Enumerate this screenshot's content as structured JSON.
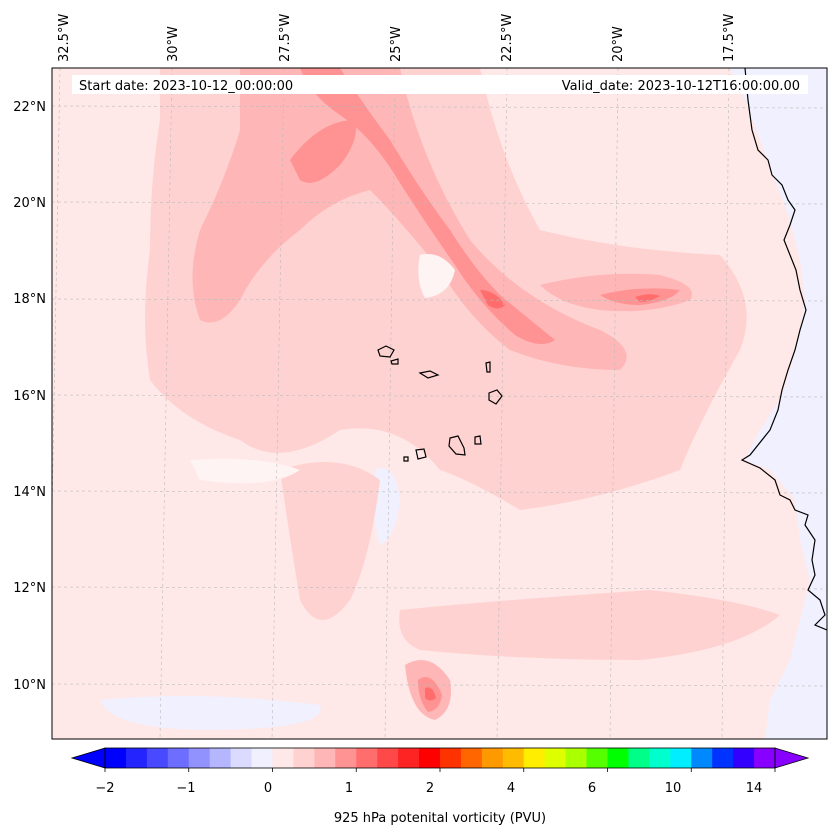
{
  "header": {
    "start_date": "Start date: 2023-10-12_00:00:00",
    "valid_date": "Valid_date: 2023-10-12T16:00:00.00"
  },
  "axes": {
    "lon_labels": [
      "32.5°W",
      "30°W",
      "27.5°W",
      "25°W",
      "22.5°W",
      "20°W",
      "17.5°W"
    ],
    "lat_labels": [
      "22°N",
      "20°N",
      "18°N",
      "16°N",
      "14°N",
      "12°N",
      "10°N"
    ],
    "gridlines": true
  },
  "colorbar": {
    "label": "925 hPa potenital vorticity (PVU)",
    "tick_labels": [
      "−2",
      "−1",
      "0",
      "1",
      "2",
      "4",
      "6",
      "10",
      "14"
    ],
    "colors": [
      "#0000ff",
      "#2424ff",
      "#4949ff",
      "#6d6dff",
      "#9292ff",
      "#b6b6ff",
      "#dbdbff",
      "#f0f0ff",
      "#ffe8e8",
      "#ffd2d2",
      "#ffb6b6",
      "#ff9292",
      "#ff6d6d",
      "#ff4949",
      "#ff2424",
      "#ff0000",
      "#ff3300",
      "#ff6600",
      "#ff9900",
      "#ffbb00",
      "#ffee00",
      "#ddff00",
      "#aaff00",
      "#55ff00",
      "#00ff00",
      "#00ff88",
      "#00ffcc",
      "#00eeff",
      "#0088ff",
      "#0033ff",
      "#3300ff",
      "#8800ff"
    ],
    "extend": "both"
  },
  "legend_colors": {
    "background_field": "#ffe8e8",
    "light_band": "#ffd2d2",
    "medium_band": "#ffb6b6",
    "strong_band": "#ff9292",
    "peak": "#ff6d6d",
    "negative": "#f0f0ff",
    "coastline": "#000000"
  }
}
